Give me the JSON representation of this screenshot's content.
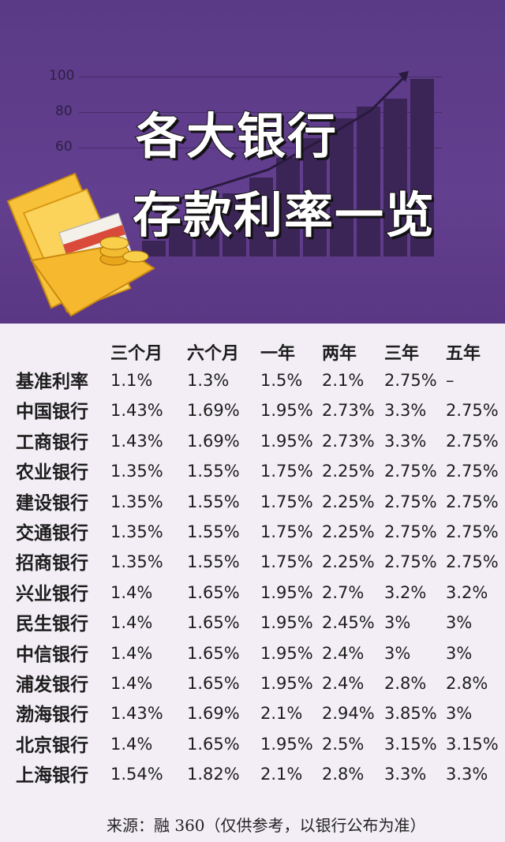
{
  "banner": {
    "title_line1": "各大银行",
    "title_line2": "存款利率一览",
    "axis_labels": [
      "100",
      "80",
      "60"
    ],
    "colors": {
      "background": "#5a3a86",
      "bars": "#3b2456",
      "wallet": "#f5b82e"
    },
    "icons": [
      "bar-chart-illustration",
      "trend-arrow-icon",
      "wallet-icon",
      "bank-card-icon",
      "gold-coins-icon"
    ]
  },
  "table": {
    "headers": [
      "三个月",
      "六个月",
      "一年",
      "两年",
      "三年",
      "五年"
    ],
    "rows": [
      {
        "name": "基准利率",
        "values": [
          "1.1%",
          "1.3%",
          "1.5%",
          "2.1%",
          "2.75%",
          "–"
        ]
      },
      {
        "name": "中国银行",
        "values": [
          "1.43%",
          "1.69%",
          "1.95%",
          "2.73%",
          "3.3%",
          "2.75%"
        ]
      },
      {
        "name": "工商银行",
        "values": [
          "1.43%",
          "1.69%",
          "1.95%",
          "2.73%",
          "3.3%",
          "2.75%"
        ]
      },
      {
        "name": "农业银行",
        "values": [
          "1.35%",
          "1.55%",
          "1.75%",
          "2.25%",
          "2.75%",
          "2.75%"
        ]
      },
      {
        "name": "建设银行",
        "values": [
          "1.35%",
          "1.55%",
          "1.75%",
          "2.25%",
          "2.75%",
          "2.75%"
        ]
      },
      {
        "name": "交通银行",
        "values": [
          "1.35%",
          "1.55%",
          "1.75%",
          "2.25%",
          "2.75%",
          "2.75%"
        ]
      },
      {
        "name": "招商银行",
        "values": [
          "1.35%",
          "1.55%",
          "1.75%",
          "2.25%",
          "2.75%",
          "2.75%"
        ]
      },
      {
        "name": "兴业银行",
        "values": [
          "1.4%",
          "1.65%",
          "1.95%",
          "2.7%",
          "3.2%",
          "3.2%"
        ]
      },
      {
        "name": "民生银行",
        "values": [
          "1.4%",
          "1.65%",
          "1.95%",
          "2.45%",
          "3%",
          "3%"
        ]
      },
      {
        "name": "中信银行",
        "values": [
          "1.4%",
          "1.65%",
          "1.95%",
          "2.4%",
          "3%",
          "3%"
        ]
      },
      {
        "name": "浦发银行",
        "values": [
          "1.4%",
          "1.65%",
          "1.95%",
          "2.4%",
          "2.8%",
          "2.8%"
        ]
      },
      {
        "name": "渤海银行",
        "values": [
          "1.43%",
          "1.69%",
          "2.1%",
          "2.94%",
          "3.85%",
          "3%"
        ]
      },
      {
        "name": "北京银行",
        "values": [
          "1.4%",
          "1.65%",
          "1.95%",
          "2.5%",
          "3.15%",
          "3.15%"
        ]
      },
      {
        "name": "上海银行",
        "values": [
          "1.54%",
          "1.82%",
          "2.1%",
          "2.8%",
          "3.3%",
          "3.3%"
        ]
      }
    ]
  },
  "source": "来源：融 360（仅供参考，以银行公布为准）"
}
